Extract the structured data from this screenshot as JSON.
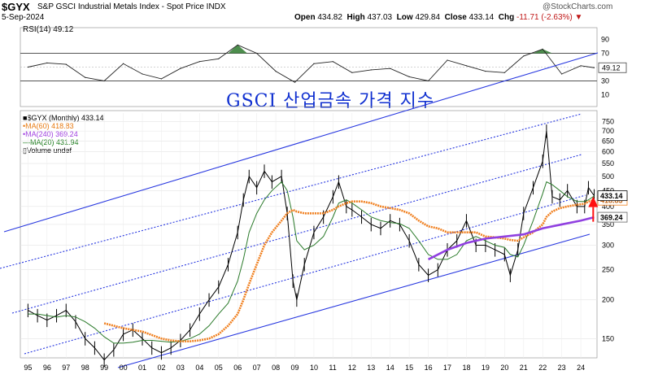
{
  "header": {
    "symbol": "$GYX",
    "title": "S&P GSCI Industrial Metals Index - Spot Price INDX",
    "date": "5-Sep-2024",
    "open_label": "Open",
    "open": "434.82",
    "high_label": "High",
    "high": "437.03",
    "low_label": "Low",
    "low": "429.84",
    "close_label": "Close",
    "close": "433.14",
    "chg_label": "Chg",
    "chg": "-11.71 (-2.63%)",
    "chg_arrow": "▼",
    "watermark": "@StockCharts.com"
  },
  "overlay_title": "GSCI 산업금속 가격 지수",
  "rsi_panel": {
    "label": "RSI(14) 49.12",
    "value_badge": "49.12",
    "ticks": [
      "90",
      "70",
      "50",
      "30",
      "10"
    ]
  },
  "price_panel": {
    "legend": [
      {
        "label": "$GYX (Monthly) 433.14",
        "color": "#000000",
        "marker": "■"
      },
      {
        "label": "MA(60) 418.83",
        "color": "#e87a10",
        "marker": "•"
      },
      {
        "label": "MA(240) 369.24",
        "color": "#a040e0",
        "marker": "•"
      },
      {
        "label": "MA(20) 431.94",
        "color": "#1a7a1a",
        "marker": "—"
      },
      {
        "label": "Volume undef",
        "color": "#000000",
        "marker": "▯"
      }
    ],
    "badges": {
      "close": "433.14",
      "ma60": "418.83",
      "ma240": "369.24"
    }
  },
  "colors": {
    "price": "#000000",
    "ma20": "#2a7a2a",
    "ma60": "#f08020",
    "ma240": "#9040e0",
    "channel": "#2838e0",
    "rsi_fill": "#2e7a2e",
    "arrow": "#ff1010"
  },
  "chart_data": [
    {
      "type": "line",
      "title": "RSI(14)",
      "y_range": [
        0,
        100
      ],
      "reference_lines": [
        30,
        50,
        70
      ],
      "current": 49.12,
      "x": [
        1995,
        1996,
        1997,
        1998,
        1999,
        2000,
        2001,
        2002,
        2003,
        2004,
        2005,
        2006,
        2007,
        2008,
        2009,
        2010,
        2011,
        2012,
        2013,
        2014,
        2015,
        2016,
        2017,
        2018,
        2019,
        2020,
        2021,
        2022,
        2023,
        2024,
        2024.7
      ],
      "values": [
        50,
        56,
        54,
        35,
        30,
        55,
        40,
        33,
        48,
        58,
        62,
        82,
        70,
        44,
        28,
        55,
        58,
        42,
        46,
        48,
        36,
        30,
        60,
        52,
        44,
        42,
        66,
        76,
        40,
        52,
        49.12
      ]
    },
    {
      "type": "line",
      "title": "$GYX (Monthly)",
      "y_scale": "log",
      "y_ticks": [
        150,
        200,
        250,
        300,
        350,
        400,
        450,
        500,
        550,
        600,
        650,
        700,
        750
      ],
      "x_tick_labels": [
        "95",
        "96",
        "97",
        "98",
        "99",
        "00",
        "01",
        "02",
        "03",
        "04",
        "05",
        "06",
        "07",
        "08",
        "09",
        "10",
        "11",
        "12",
        "13",
        "14",
        "15",
        "16",
        "17",
        "18",
        "19",
        "20",
        "21",
        "22",
        "23",
        "24"
      ],
      "series": [
        {
          "name": "$GYX",
          "x": [
            1995,
            1995.5,
            1996,
            1996.5,
            1997,
            1997.5,
            1998,
            1998.5,
            1999,
            1999.5,
            2000,
            2000.5,
            2001,
            2001.5,
            2002,
            2002.5,
            2003,
            2003.5,
            2004,
            2004.5,
            2005,
            2005.5,
            2006,
            2006.3,
            2006.6,
            2007,
            2007.4,
            2007.8,
            2008.3,
            2008.6,
            2008.9,
            2009.1,
            2009.5,
            2010,
            2010.5,
            2011,
            2011.3,
            2011.7,
            2012,
            2012.5,
            2013,
            2013.5,
            2014,
            2014.5,
            2015,
            2015.5,
            2016,
            2016.5,
            2017,
            2017.5,
            2018,
            2018.5,
            2019,
            2019.5,
            2020,
            2020.3,
            2020.7,
            2021,
            2021.5,
            2022,
            2022.2,
            2022.5,
            2022.9,
            2023.3,
            2023.8,
            2024.2,
            2024.4,
            2024.7
          ],
          "values": [
            185,
            178,
            172,
            178,
            185,
            170,
            150,
            140,
            128,
            138,
            155,
            160,
            150,
            140,
            135,
            140,
            148,
            160,
            180,
            200,
            220,
            260,
            330,
            420,
            500,
            460,
            520,
            480,
            500,
            380,
            230,
            200,
            260,
            330,
            370,
            430,
            480,
            400,
            390,
            370,
            350,
            340,
            360,
            350,
            310,
            260,
            240,
            250,
            290,
            310,
            360,
            300,
            300,
            290,
            280,
            240,
            290,
            380,
            460,
            560,
            700,
            430,
            420,
            450,
            400,
            400,
            460,
            433.14
          ]
        },
        {
          "name": "MA(20)",
          "values": [
            180,
            180,
            178,
            176,
            178,
            176,
            170,
            162,
            152,
            145,
            145,
            146,
            148,
            148,
            147,
            146,
            147,
            150,
            155,
            165,
            180,
            195,
            230,
            270,
            330,
            380,
            420,
            450,
            480,
            450,
            370,
            310,
            290,
            300,
            320,
            370,
            410,
            420,
            410,
            390,
            370,
            360,
            355,
            352,
            340,
            310,
            280,
            270,
            270,
            280,
            310,
            320,
            310,
            300,
            295,
            280,
            275,
            300,
            360,
            440,
            480,
            470,
            450,
            430,
            415,
            415,
            420,
            431.94
          ]
        },
        {
          "name": "MA(60)",
          "values": [
            null,
            null,
            null,
            null,
            null,
            null,
            null,
            null,
            168,
            165,
            162,
            160,
            158,
            154,
            150,
            148,
            147,
            147,
            148,
            150,
            155,
            165,
            180,
            200,
            225,
            260,
            300,
            330,
            360,
            380,
            390,
            385,
            380,
            380,
            380,
            390,
            400,
            410,
            415,
            415,
            410,
            400,
            395,
            390,
            380,
            360,
            345,
            340,
            330,
            330,
            330,
            330,
            320,
            318,
            315,
            312,
            310,
            318,
            330,
            350,
            370,
            385,
            395,
            400,
            405,
            408,
            415,
            418.83
          ]
        },
        {
          "name": "MA(240)",
          "x": [
            2016,
            2017,
            2018,
            2019,
            2020,
            2021,
            2022,
            2023,
            2024,
            2024.7
          ],
          "values": [
            270,
            290,
            305,
            315,
            320,
            325,
            340,
            350,
            360,
            369.24
          ]
        }
      ]
    }
  ]
}
